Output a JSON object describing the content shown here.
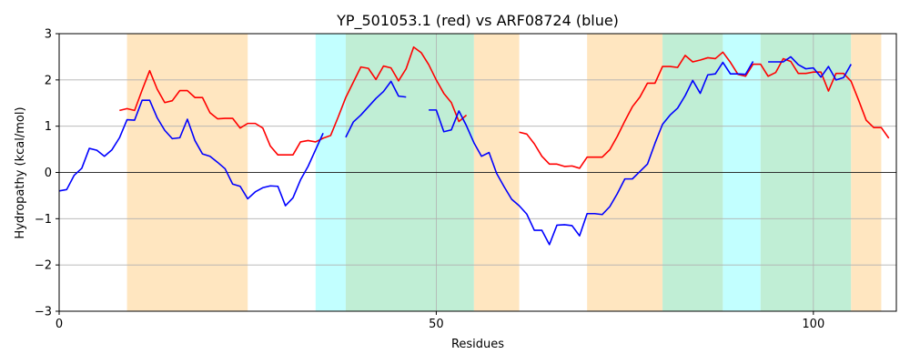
{
  "chart_data": {
    "type": "line",
    "title": "YP_501053.1 (red) vs ARF08724 (blue)",
    "xlabel": "Residues",
    "ylabel": "Hydropathy (kcal/mol)",
    "xlim": [
      0,
      111
    ],
    "ylim": [
      -3,
      3
    ],
    "x_ticks": [
      0,
      50,
      100
    ],
    "y_ticks": [
      -3,
      -2,
      -1,
      0,
      1,
      2,
      3
    ],
    "grid": true,
    "zero_line": true,
    "colors": {
      "red_series": "#ff0000",
      "blue_series": "#0000ff",
      "orange_band": "#ffe6c0",
      "cyan_band": "#c2ffff",
      "green_band": "#c0eed5"
    },
    "regions": [
      {
        "start": 9,
        "end": 25,
        "color": "orange"
      },
      {
        "start": 34,
        "end": 38,
        "color": "cyan"
      },
      {
        "start": 38,
        "end": 55,
        "color": "green"
      },
      {
        "start": 55,
        "end": 61,
        "color": "orange"
      },
      {
        "start": 70,
        "end": 80,
        "color": "orange"
      },
      {
        "start": 80,
        "end": 88,
        "color": "green"
      },
      {
        "start": 88,
        "end": 93,
        "color": "cyan"
      },
      {
        "start": 93,
        "end": 105,
        "color": "green"
      },
      {
        "start": 105,
        "end": 109,
        "color": "orange"
      }
    ],
    "series": [
      {
        "color": "#ff0000",
        "segments": [
          [
            [
              8,
              1.34
            ],
            [
              9,
              1.38
            ],
            [
              10,
              1.34
            ],
            [
              11,
              1.78
            ],
            [
              12,
              2.2
            ],
            [
              13,
              1.8
            ],
            [
              14,
              1.51
            ],
            [
              15,
              1.55
            ],
            [
              16,
              1.77
            ],
            [
              17,
              1.77
            ],
            [
              18,
              1.62
            ],
            [
              19,
              1.62
            ],
            [
              20,
              1.29
            ],
            [
              21,
              1.16
            ],
            [
              22,
              1.17
            ],
            [
              23,
              1.17
            ],
            [
              24,
              0.96
            ],
            [
              25,
              1.06
            ],
            [
              26,
              1.06
            ],
            [
              27,
              0.96
            ],
            [
              28,
              0.57
            ],
            [
              29,
              0.38
            ],
            [
              30,
              0.38
            ],
            [
              31,
              0.38
            ],
            [
              32,
              0.66
            ],
            [
              33,
              0.69
            ],
            [
              34,
              0.66
            ],
            [
              35,
              0.74
            ],
            [
              36,
              0.8
            ],
            [
              37,
              1.2
            ],
            [
              38,
              1.62
            ],
            [
              39,
              1.95
            ],
            [
              40,
              2.28
            ],
            [
              41,
              2.25
            ],
            [
              42,
              2.01
            ],
            [
              43,
              2.3
            ],
            [
              44,
              2.26
            ],
            [
              45,
              1.98
            ],
            [
              46,
              2.24
            ],
            [
              47,
              2.71
            ],
            [
              48,
              2.59
            ],
            [
              49,
              2.33
            ],
            [
              50,
              2.0
            ],
            [
              51,
              1.71
            ],
            [
              52,
              1.51
            ],
            [
              53,
              1.1
            ],
            [
              54,
              1.24
            ]
          ],
          [
            [
              61,
              0.87
            ],
            [
              62,
              0.83
            ],
            [
              63,
              0.62
            ],
            [
              64,
              0.35
            ],
            [
              65,
              0.18
            ],
            [
              66,
              0.18
            ],
            [
              67,
              0.13
            ],
            [
              68,
              0.14
            ],
            [
              69,
              0.09
            ],
            [
              70,
              0.33
            ],
            [
              71,
              0.33
            ],
            [
              72,
              0.33
            ],
            [
              73,
              0.49
            ],
            [
              74,
              0.78
            ],
            [
              75,
              1.11
            ],
            [
              76,
              1.42
            ],
            [
              77,
              1.63
            ],
            [
              78,
              1.93
            ],
            [
              79,
              1.93
            ],
            [
              80,
              2.29
            ],
            [
              81,
              2.29
            ],
            [
              82,
              2.27
            ],
            [
              83,
              2.53
            ],
            [
              84,
              2.39
            ],
            [
              85,
              2.43
            ],
            [
              86,
              2.48
            ],
            [
              87,
              2.46
            ],
            [
              88,
              2.6
            ],
            [
              89,
              2.38
            ],
            [
              90,
              2.12
            ],
            [
              91,
              2.08
            ],
            [
              92,
              2.34
            ],
            [
              93,
              2.34
            ],
            [
              94,
              2.08
            ],
            [
              95,
              2.16
            ],
            [
              96,
              2.46
            ],
            [
              97,
              2.4
            ],
            [
              98,
              2.14
            ],
            [
              99,
              2.14
            ],
            [
              100,
              2.17
            ],
            [
              101,
              2.17
            ],
            [
              102,
              1.76
            ],
            [
              103,
              2.14
            ],
            [
              104,
              2.14
            ],
            [
              105,
              1.97
            ],
            [
              106,
              1.56
            ],
            [
              107,
              1.13
            ],
            [
              108,
              0.97
            ],
            [
              109,
              0.97
            ],
            [
              110,
              0.74
            ]
          ]
        ]
      },
      {
        "color": "#0000ff",
        "segments": [
          [
            [
              0,
              -0.4
            ],
            [
              1,
              -0.37
            ],
            [
              2,
              -0.06
            ],
            [
              3,
              0.09
            ],
            [
              4,
              0.52
            ],
            [
              5,
              0.48
            ],
            [
              6,
              0.35
            ],
            [
              7,
              0.49
            ],
            [
              8,
              0.75
            ],
            [
              9,
              1.14
            ],
            [
              10,
              1.13
            ],
            [
              11,
              1.56
            ],
            [
              12,
              1.56
            ],
            [
              13,
              1.18
            ],
            [
              14,
              0.91
            ],
            [
              15,
              0.73
            ],
            [
              16,
              0.75
            ],
            [
              17,
              1.15
            ],
            [
              18,
              0.69
            ],
            [
              19,
              0.4
            ],
            [
              20,
              0.35
            ],
            [
              21,
              0.22
            ],
            [
              22,
              0.08
            ],
            [
              23,
              -0.25
            ],
            [
              24,
              -0.3
            ],
            [
              25,
              -0.57
            ],
            [
              26,
              -0.42
            ],
            [
              27,
              -0.33
            ],
            [
              28,
              -0.29
            ],
            [
              29,
              -0.3
            ],
            [
              30,
              -0.72
            ],
            [
              31,
              -0.55
            ],
            [
              32,
              -0.16
            ],
            [
              33,
              0.13
            ],
            [
              34,
              0.49
            ],
            [
              35,
              0.85
            ]
          ],
          [
            [
              38,
              0.76
            ],
            [
              39,
              1.09
            ],
            [
              40,
              1.24
            ],
            [
              41,
              1.42
            ],
            [
              42,
              1.6
            ],
            [
              43,
              1.75
            ],
            [
              44,
              1.97
            ],
            [
              45,
              1.65
            ],
            [
              46,
              1.63
            ]
          ],
          [
            [
              49,
              1.35
            ],
            [
              50,
              1.35
            ],
            [
              51,
              0.88
            ],
            [
              52,
              0.92
            ],
            [
              53,
              1.33
            ],
            [
              54,
              1.01
            ],
            [
              55,
              0.64
            ],
            [
              56,
              0.35
            ],
            [
              57,
              0.43
            ],
            [
              58,
              -0.02
            ],
            [
              59,
              -0.31
            ],
            [
              60,
              -0.58
            ],
            [
              61,
              -0.72
            ],
            [
              62,
              -0.9
            ],
            [
              63,
              -1.25
            ],
            [
              64,
              -1.25
            ],
            [
              65,
              -1.56
            ],
            [
              66,
              -1.14
            ],
            [
              67,
              -1.13
            ],
            [
              68,
              -1.15
            ],
            [
              69,
              -1.37
            ],
            [
              70,
              -0.89
            ],
            [
              71,
              -0.89
            ],
            [
              72,
              -0.91
            ],
            [
              73,
              -0.74
            ],
            [
              74,
              -0.46
            ],
            [
              75,
              -0.14
            ],
            [
              76,
              -0.14
            ],
            [
              77,
              0.02
            ],
            [
              78,
              0.18
            ],
            [
              79,
              0.63
            ],
            [
              80,
              1.04
            ],
            [
              81,
              1.24
            ],
            [
              82,
              1.39
            ],
            [
              83,
              1.66
            ],
            [
              84,
              1.99
            ],
            [
              85,
              1.71
            ],
            [
              86,
              2.11
            ],
            [
              87,
              2.13
            ],
            [
              88,
              2.38
            ],
            [
              89,
              2.13
            ],
            [
              90,
              2.13
            ],
            [
              91,
              2.12
            ],
            [
              92,
              2.4
            ]
          ],
          [
            [
              94,
              2.39
            ],
            [
              95,
              2.39
            ],
            [
              96,
              2.39
            ],
            [
              97,
              2.5
            ],
            [
              98,
              2.33
            ],
            [
              99,
              2.24
            ],
            [
              100,
              2.26
            ],
            [
              101,
              2.06
            ],
            [
              102,
              2.29
            ],
            [
              103,
              2.0
            ],
            [
              104,
              2.05
            ],
            [
              105,
              2.34
            ]
          ]
        ]
      }
    ]
  }
}
